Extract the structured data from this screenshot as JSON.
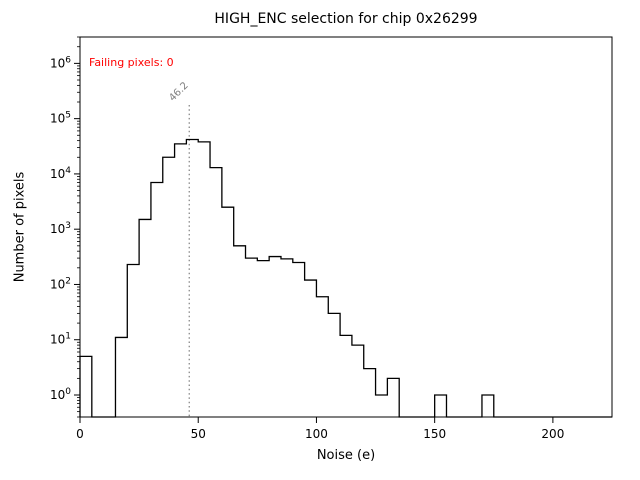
{
  "chart_data": {
    "type": "bar",
    "subtype": "step-histogram",
    "title": "HIGH_ENC selection for chip 0x26299",
    "xlabel": "Noise (e)",
    "ylabel": "Number of pixels",
    "annotation": {
      "text": "Failing pixels: 0",
      "color": "#ff0000"
    },
    "vline": {
      "x": 46.2,
      "label": "46.2",
      "color": "#808080",
      "style": "dotted"
    },
    "bin_start": 0,
    "bin_width": 5,
    "counts": [
      5,
      0,
      0,
      11,
      230,
      1500,
      7000,
      20000,
      35000,
      42000,
      38000,
      13000,
      2500,
      500,
      300,
      270,
      320,
      290,
      250,
      120,
      60,
      30,
      12,
      8,
      3,
      1,
      2,
      0,
      0,
      0,
      1,
      0,
      0,
      0,
      1,
      0,
      0,
      0,
      0,
      0,
      0,
      0,
      0,
      0,
      0
    ],
    "xlim": [
      0,
      225
    ],
    "ylim": [
      0.4,
      3000000
    ],
    "x_ticks": [
      0,
      50,
      100,
      150,
      200
    ],
    "y_tick_exponents": [
      0,
      1,
      2,
      3,
      4,
      5,
      6
    ],
    "yscale": "log",
    "grid": false,
    "legend": "none",
    "line_color": "#000000"
  }
}
